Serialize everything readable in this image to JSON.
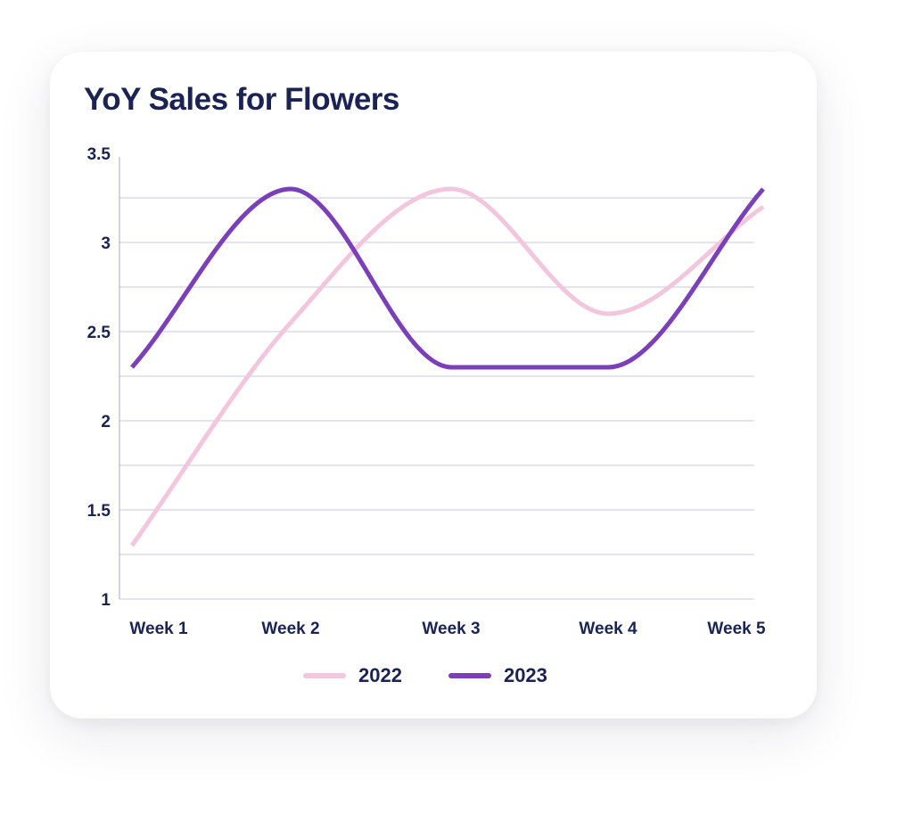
{
  "chart_data": {
    "type": "line",
    "title": "YoY Sales for Flowers",
    "xlabel": "",
    "ylabel": "",
    "categories": [
      "Week 1",
      "Week 2",
      "Week 3",
      "Week 4",
      "Week 5"
    ],
    "y_ticks": [
      "1",
      "1.5",
      "2",
      "2.5",
      "3",
      "3.5"
    ],
    "ylim": [
      1,
      3.5
    ],
    "grid": true,
    "smooth": true,
    "legend_position": "bottom",
    "series": [
      {
        "name": "2022",
        "color": "#f2c6dc",
        "values": [
          1.3,
          2.55,
          3.3,
          2.6,
          3.2
        ]
      },
      {
        "name": "2023",
        "color": "#7b3fb8",
        "values": [
          2.3,
          3.3,
          2.3,
          2.3,
          3.3
        ]
      }
    ]
  },
  "colors": {
    "text": "#1b2352",
    "grid": "#c9c9e3",
    "axis": "#a9a9cc"
  }
}
